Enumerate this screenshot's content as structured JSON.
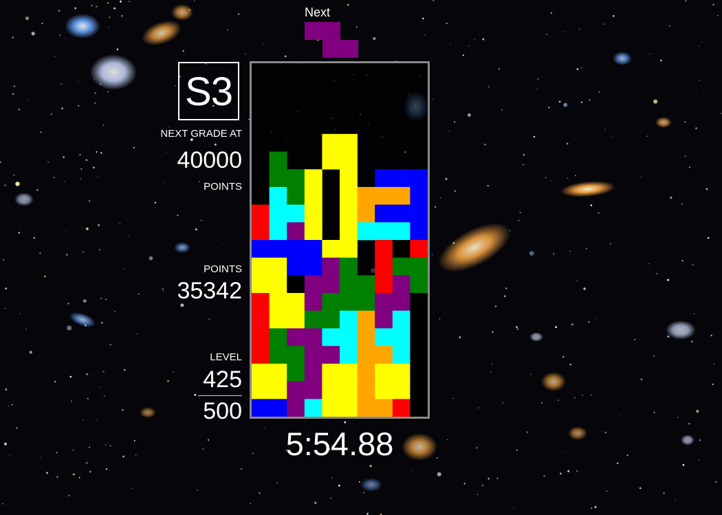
{
  "hud": {
    "next_label": "Next",
    "grade": "S3",
    "next_grade_label": "NEXT GRADE AT",
    "next_grade_points": "40000",
    "next_grade_unit": "POINTS",
    "points_label": "POINTS",
    "points_value": "35342",
    "level_label": "LEVEL",
    "level_value": "425",
    "level_target": "500",
    "timer": "5:54.88"
  },
  "colors": {
    "R": "#ff0000",
    "Y": "#ffff00",
    "G": "#008000",
    "C": "#00ffff",
    "B": "#0000ff",
    "O": "#ffa500",
    "P": "#800080",
    "K": "#000000",
    "border": "#8a8a8a"
  },
  "next_piece": {
    "name": "Z-piece",
    "color": "P",
    "shape": [
      "XX.",
      ".XX"
    ]
  },
  "board": {
    "columns": 10,
    "rows": 20,
    "grid": [
      "..........",
      "..........",
      "..........",
      "..........",
      "....YY....",
      ".G..YY....",
      ".GGY.Y.BBB",
      ".CGY.YOOOB",
      "RCCY.YOBBB",
      "RCPY.YCCCB",
      "BBBBYY.RKR",
      "YYBBPG.RGG",
      "YYKPPGGRPG",
      "RYYPGGGPPK",
      "RYYGGCOPCK",
      "RGPPCCOCCK",
      "RGGPPCOOCK",
      "YYGPYYOYYK",
      "YYPPYYOYYK",
      "BBPCYYOORK"
    ]
  }
}
